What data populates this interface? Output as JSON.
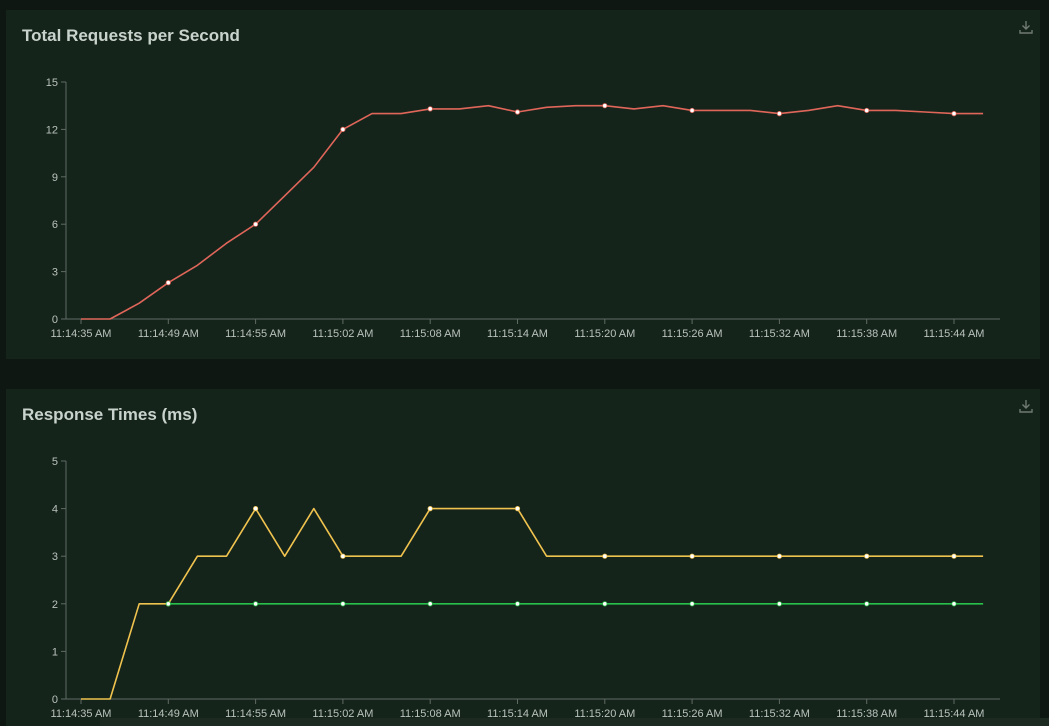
{
  "panels": {
    "rps": {
      "title": "Total Requests per Second",
      "download_icon": "download-icon"
    },
    "rt": {
      "title": "Response Times (ms)",
      "download_icon": "download-icon"
    }
  },
  "colors": {
    "rps_line": "#e0665a",
    "rt_line_a": "#f0c34f",
    "rt_line_b": "#28c04a",
    "axis": "#5f6a64",
    "tick_text": "#b9c2bd",
    "marker": "#ffffff"
  },
  "chart_data": [
    {
      "type": "line",
      "title": "Total Requests per Second",
      "xlabel": "",
      "ylabel": "",
      "ylim": [
        0,
        15
      ],
      "yticks": [
        0,
        3,
        6,
        9,
        12,
        15
      ],
      "x_tick_labels": [
        "11:14:35 AM",
        "11:14:49 AM",
        "11:14:55 AM",
        "11:15:02 AM",
        "11:15:08 AM",
        "11:15:14 AM",
        "11:15:20 AM",
        "11:15:26 AM",
        "11:15:32 AM",
        "11:15:38 AM",
        "11:15:44 AM"
      ],
      "grid": false,
      "legend": "none",
      "series": [
        {
          "values": [
            0,
            0,
            1,
            2.3,
            3.4,
            4.8,
            6,
            7.8,
            9.6,
            12,
            13,
            13,
            13.3,
            13.3,
            13.5,
            13.1,
            13.4,
            13.5,
            13.5,
            13.3,
            13.5,
            13.2,
            13.2,
            13.2,
            13,
            13.2,
            13.5,
            13.2,
            13.2,
            13.1,
            13,
            13
          ],
          "markers": [
            3,
            6,
            9,
            12,
            15,
            18,
            21,
            24,
            27,
            30
          ],
          "color": "#e0665a"
        }
      ]
    },
    {
      "type": "line",
      "title": "Response Times (ms)",
      "xlabel": "",
      "ylabel": "",
      "ylim": [
        0,
        5
      ],
      "yticks": [
        0,
        1,
        2,
        3,
        4,
        5
      ],
      "x_tick_labels": [
        "11:14:35 AM",
        "11:14:49 AM",
        "11:14:55 AM",
        "11:15:02 AM",
        "11:15:08 AM",
        "11:15:14 AM",
        "11:15:20 AM",
        "11:15:26 AM",
        "11:15:32 AM",
        "11:15:38 AM",
        "11:15:44 AM"
      ],
      "grid": false,
      "legend": "none",
      "series": [
        {
          "values": [
            0,
            0,
            2,
            2,
            3,
            3,
            4,
            3,
            4,
            3,
            3,
            3,
            4,
            4,
            4,
            4,
            3,
            3,
            3,
            3,
            3,
            3,
            3,
            3,
            3,
            3,
            3,
            3,
            3,
            3,
            3,
            3
          ],
          "markers": [
            3,
            6,
            9,
            12,
            15,
            18,
            21,
            24,
            27,
            30
          ],
          "color": "#f0c34f"
        },
        {
          "values": [
            null,
            null,
            null,
            2,
            2,
            2,
            2,
            2,
            2,
            2,
            2,
            2,
            2,
            2,
            2,
            2,
            2,
            2,
            2,
            2,
            2,
            2,
            2,
            2,
            2,
            2,
            2,
            2,
            2,
            2,
            2,
            2
          ],
          "markers": [
            3,
            6,
            9,
            12,
            15,
            18,
            21,
            24,
            27,
            30
          ],
          "color": "#28c04a"
        }
      ]
    }
  ]
}
